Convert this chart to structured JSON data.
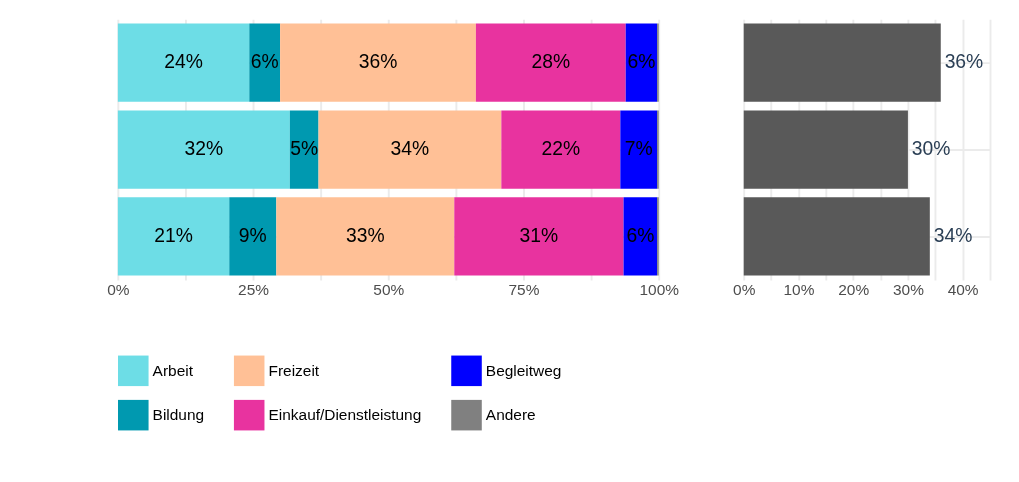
{
  "chart_data": [
    {
      "type": "bar",
      "orientation": "horizontal",
      "stacked": true,
      "categories": [
        null,
        null,
        null
      ],
      "series": [
        {
          "name": "Arbeit",
          "color": "#6ddde6",
          "values": [
            24.3,
            31.8,
            20.6
          ],
          "value_labels": [
            "24%",
            "32%",
            "21%"
          ]
        },
        {
          "name": "Bildung",
          "color": "#0099b0",
          "values": [
            5.7,
            5.3,
            8.7
          ],
          "value_labels": [
            "6%",
            "5%",
            "9%"
          ]
        },
        {
          "name": "Freizeit",
          "color": "#ffc096",
          "values": [
            36.2,
            33.8,
            32.9
          ],
          "value_labels": [
            "36%",
            "34%",
            "33%"
          ]
        },
        {
          "name": "Einkauf/Dienstleistung",
          "color": "#e8339f",
          "values": [
            27.7,
            22.0,
            31.3
          ],
          "value_labels": [
            "28%",
            "22%",
            "31%"
          ]
        },
        {
          "name": "Begleitweg",
          "color": "#0000ff",
          "values": [
            5.8,
            6.8,
            6.2
          ],
          "value_labels": [
            "6%",
            "7%",
            "6%"
          ]
        },
        {
          "name": "Andere",
          "color": "#808080",
          "values": [
            0.3,
            0.3,
            0.3
          ],
          "value_labels": [
            null,
            null,
            null
          ]
        }
      ],
      "xlim": [
        0,
        100
      ],
      "xticks": [
        {
          "value": 0,
          "label": "0%"
        },
        {
          "value": 12.5,
          "label": null
        },
        {
          "value": 25,
          "label": "25%"
        },
        {
          "value": 37.5,
          "label": null
        },
        {
          "value": 50,
          "label": "50%"
        },
        {
          "value": 62.5,
          "label": null
        },
        {
          "value": 75,
          "label": "75%"
        },
        {
          "value": 87.5,
          "label": null
        },
        {
          "value": 100,
          "label": "100%"
        }
      ],
      "grid": true,
      "legend": "bottom",
      "tick_labels": "x"
    },
    {
      "type": "bar",
      "orientation": "horizontal",
      "categories": [
        null,
        null,
        null
      ],
      "values": [
        36,
        30,
        34
      ],
      "color": "#595959",
      "value_labels": [
        "36%",
        "30%",
        "34%"
      ],
      "xlim": [
        0,
        45
      ],
      "xticks": [
        {
          "value": 0,
          "label": "0%"
        },
        {
          "value": 5,
          "label": null
        },
        {
          "value": 10,
          "label": "10%"
        },
        {
          "value": 15,
          "label": null
        },
        {
          "value": 20,
          "label": "20%"
        },
        {
          "value": 25,
          "label": null
        },
        {
          "value": 30,
          "label": "30%"
        },
        {
          "value": 35,
          "label": null
        },
        {
          "value": 40,
          "label": "40%"
        },
        {
          "value": 45,
          "label": null
        }
      ],
      "grid": true,
      "tick_labels": "x"
    }
  ]
}
